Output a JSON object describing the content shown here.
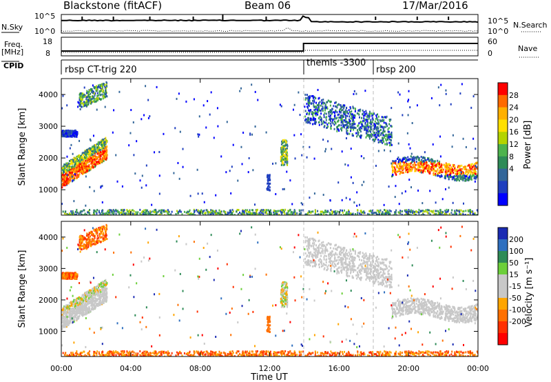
{
  "header": {
    "station": "Blackstone (fitACF)",
    "beam": "Beam 06",
    "date": "17/Mar/2016"
  },
  "summary_panel": {
    "nsky_label": "N.Sky",
    "nsearch_label": "N.Search",
    "freq_label": "Freq.",
    "freq_unit": "[MHz]",
    "nave_label": "Nave",
    "cpid_label": "CPID",
    "left_ticks_nsky": [
      "10^5",
      "10^0"
    ],
    "right_ticks_nsearch": [
      "10^5",
      "10^0"
    ],
    "left_ticks_freq": [
      "18",
      "8"
    ],
    "right_ticks_nave": [
      "60",
      "0"
    ]
  },
  "cpid_segments": [
    {
      "label": "rbsp CT-trig 220",
      "start_hour": 0
    },
    {
      "label": "themis -3300",
      "start_hour": 14
    },
    {
      "label": "rbsp 200",
      "start_hour": 18
    }
  ],
  "x_axis": {
    "title": "Time UT",
    "ticks": [
      "00:00",
      "04:00",
      "08:00",
      "12:00",
      "16:00",
      "20:00",
      "00:00"
    ],
    "range_hours": [
      0,
      24
    ]
  },
  "chart_data": [
    {
      "type": "heatmap",
      "name": "power",
      "ylabel": "Slant Range [km]",
      "yticks": [
        "1000",
        "2000",
        "3000",
        "4000"
      ],
      "ylim": [
        200,
        4500
      ],
      "colorbar": {
        "label": "Power [dB]",
        "ticks": [
          "28",
          "24",
          "20",
          "16",
          "12",
          "8",
          "4"
        ],
        "colors": [
          "#ff0000",
          "#ff6a00",
          "#ffb000",
          "#ffe000",
          "#b4d400",
          "#4db34d",
          "#2e8b57",
          "#336699",
          "#1f3fbf",
          "#0000ff"
        ]
      }
    },
    {
      "type": "heatmap",
      "name": "velocity",
      "ylabel": "Slant Range [km]",
      "yticks": [
        "1000",
        "2000",
        "3000",
        "4000"
      ],
      "ylim": [
        200,
        4500
      ],
      "colorbar": {
        "label": "Velocity [m s⁻¹]",
        "ticks": [
          "200",
          "100",
          "50",
          "15",
          "-15",
          "-50",
          "-100",
          "-200"
        ],
        "colors": [
          "#1a2bb3",
          "#2e6fbf",
          "#2e8b57",
          "#6ccf3a",
          "#c8c8c8",
          "#c8c8c8",
          "#ffa500",
          "#ff7000",
          "#ff3000",
          "#ff0000"
        ]
      }
    }
  ]
}
